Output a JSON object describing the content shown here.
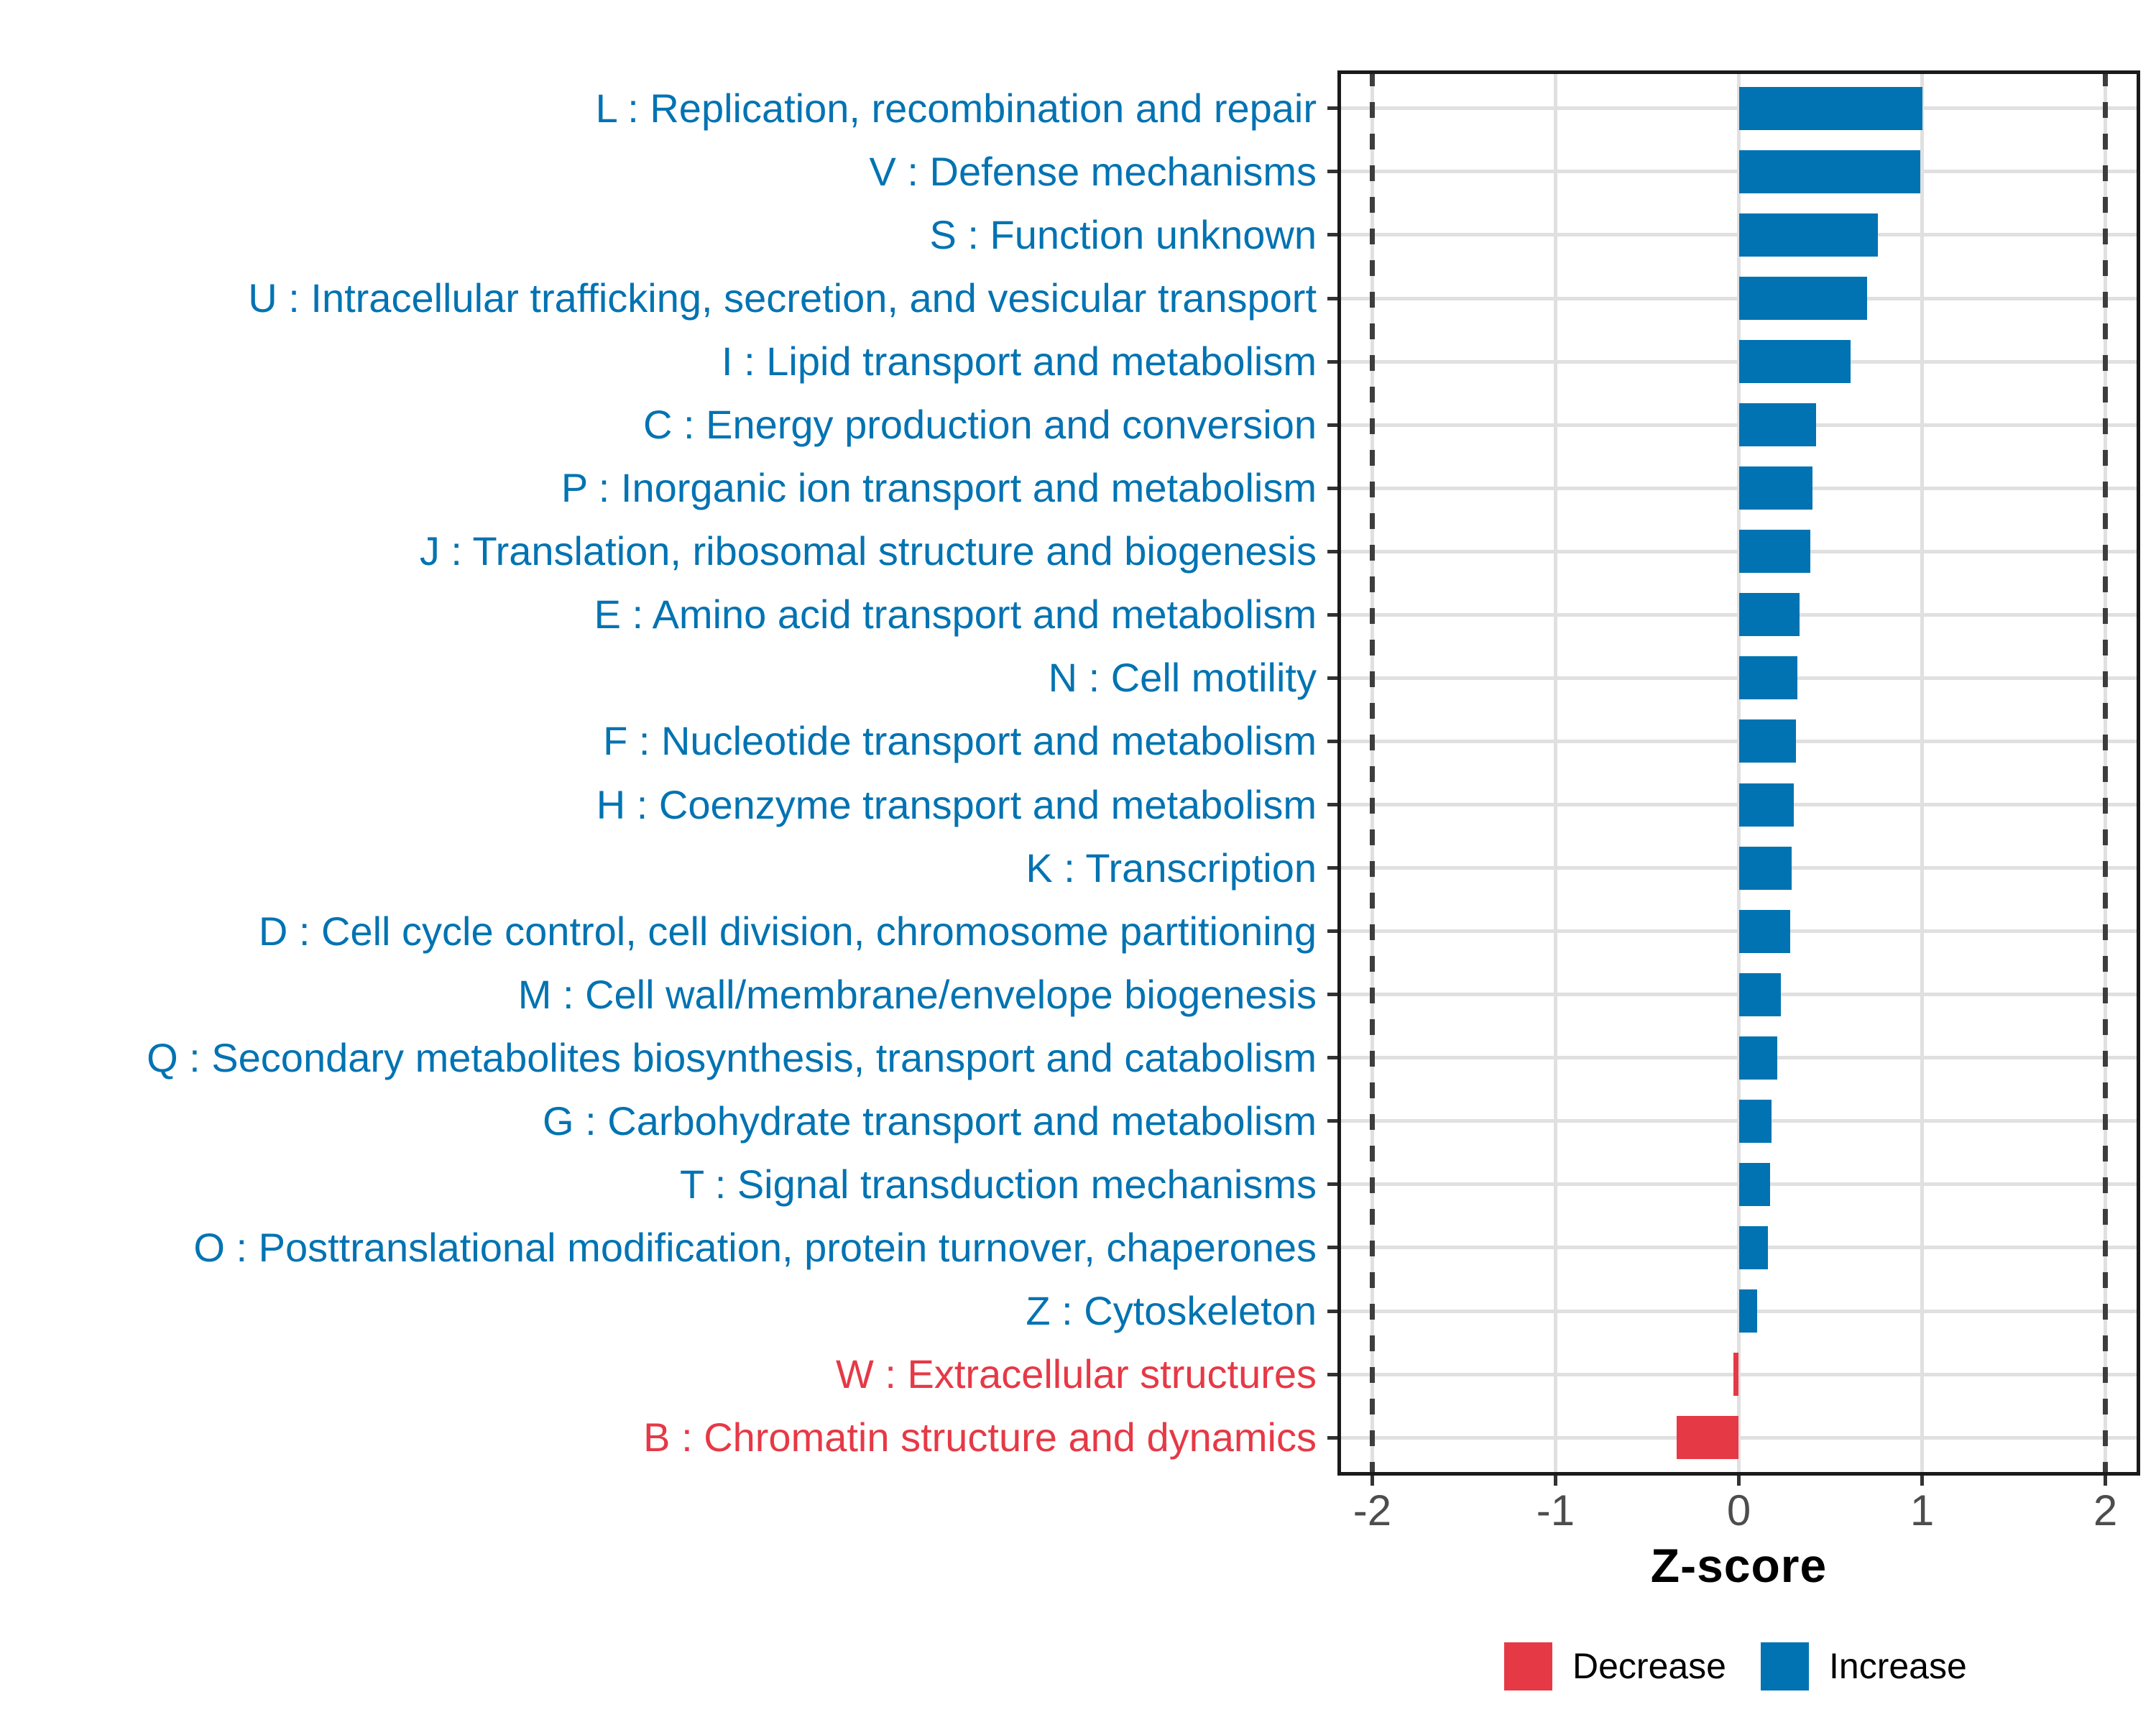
{
  "chart_data": {
    "type": "bar",
    "orientation": "horizontal",
    "title": "",
    "xlabel": "Z-score",
    "ylabel": "",
    "xlim": [
      -2.19,
      2.19
    ],
    "x_ticks": [
      {
        "label": "-2",
        "value": -2
      },
      {
        "label": "-1",
        "value": -1
      },
      {
        "label": "0",
        "value": 0
      },
      {
        "label": "1",
        "value": 1
      },
      {
        "label": "2",
        "value": 2
      }
    ],
    "reference_lines_x": [
      -2,
      2
    ],
    "grid": true,
    "legend_position": "bottom-right",
    "categories": [
      "L : Replication, recombination and repair",
      "V : Defense mechanisms",
      "S : Function unknown",
      "U : Intracellular trafficking, secretion, and vesicular transport",
      "I : Lipid transport and metabolism",
      "C : Energy production and conversion",
      "P : Inorganic ion transport and metabolism",
      "J : Translation, ribosomal structure and biogenesis",
      "E : Amino acid transport and metabolism",
      "N : Cell motility",
      "F : Nucleotide transport and metabolism",
      "H : Coenzyme transport and metabolism",
      "K : Transcription",
      "D : Cell cycle control, cell division, chromosome partitioning",
      "M : Cell wall/membrane/envelope biogenesis",
      "Q : Secondary metabolites biosynthesis, transport and catabolism",
      "G : Carbohydrate transport and metabolism",
      "T : Signal transduction mechanisms",
      "O : Posttranslational modification, protein turnover, chaperones",
      "Z : Cytoskeleton",
      "W : Extracellular structures",
      "B : Chromatin structure and dynamics"
    ],
    "values": [
      1.0,
      0.99,
      0.76,
      0.7,
      0.61,
      0.42,
      0.4,
      0.39,
      0.33,
      0.32,
      0.31,
      0.3,
      0.29,
      0.28,
      0.23,
      0.21,
      0.18,
      0.17,
      0.16,
      0.1,
      -0.03,
      -0.34
    ],
    "directions": [
      "increase",
      "increase",
      "increase",
      "increase",
      "increase",
      "increase",
      "increase",
      "increase",
      "increase",
      "increase",
      "increase",
      "increase",
      "increase",
      "increase",
      "increase",
      "increase",
      "increase",
      "increase",
      "increase",
      "increase",
      "decrease",
      "decrease"
    ],
    "colors": {
      "increase": "#0173B2",
      "decrease": "#E63946",
      "grid": "#E0E0E0",
      "reference_line": "#3D3D3D",
      "panel_border": "#1A1A1A",
      "tick": "#333333",
      "tick_label": "#4D4D4D",
      "axis_title": "#000000"
    }
  },
  "legend": {
    "decrease_label": "Decrease",
    "increase_label": "Increase",
    "decrease_color": "#E63946",
    "increase_color": "#0173B2"
  }
}
